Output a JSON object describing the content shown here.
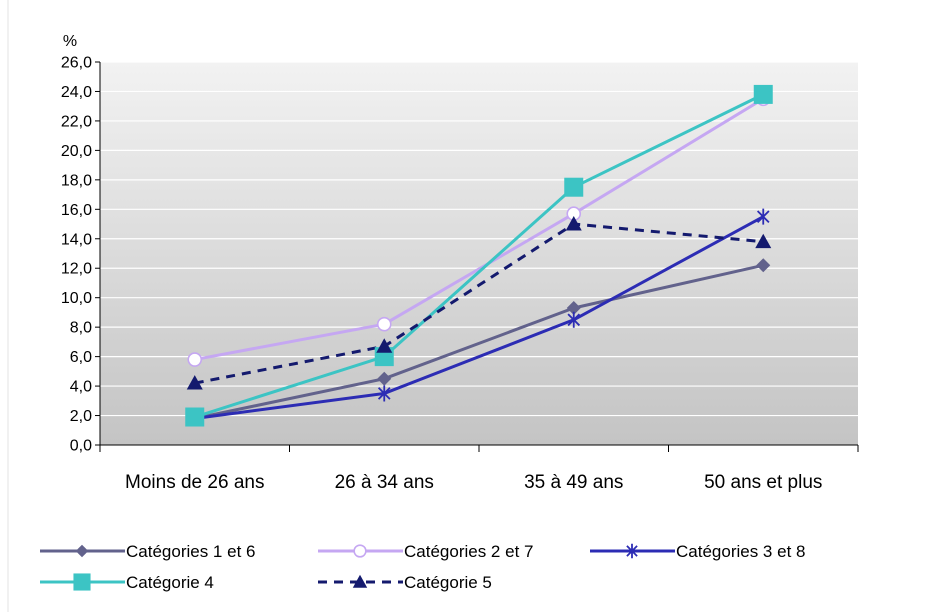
{
  "chart_data": {
    "type": "line",
    "ylabel": "%",
    "ylim": [
      0,
      26
    ],
    "ytick_step": 2,
    "ytick_labels": [
      "0,0",
      "2,0",
      "4,0",
      "6,0",
      "8,0",
      "10,0",
      "12,0",
      "14,0",
      "16,0",
      "18,0",
      "20,0",
      "22,0",
      "24,0",
      "26,0"
    ],
    "categories": [
      "Moins de 26 ans",
      "26 à 34 ans",
      "35 à 49 ans",
      "50 ans et plus"
    ],
    "grid": true,
    "legend_position": "bottom",
    "series": [
      {
        "name": "Catégories 1 et 6",
        "values": [
          1.8,
          4.5,
          9.3,
          12.2
        ],
        "color": "#62628c",
        "marker": "diamond",
        "dash": "solid"
      },
      {
        "name": "Catégories 2 et 7",
        "values": [
          5.8,
          8.2,
          15.7,
          23.5
        ],
        "color": "#c5a7f2",
        "marker": "circle-open",
        "dash": "solid"
      },
      {
        "name": "Catégories 3 et 8",
        "values": [
          1.8,
          3.5,
          8.5,
          15.5
        ],
        "color": "#2c2cb4",
        "marker": "asterisk",
        "dash": "solid"
      },
      {
        "name": "Catégorie 4",
        "values": [
          1.9,
          6.0,
          17.5,
          23.8
        ],
        "color": "#3cc4c4",
        "marker": "square",
        "dash": "solid"
      },
      {
        "name": "Catégorie 5",
        "values": [
          4.2,
          6.7,
          15.0,
          13.8
        ],
        "color": "#141a6e",
        "marker": "triangle",
        "dash": "dashed"
      }
    ]
  }
}
